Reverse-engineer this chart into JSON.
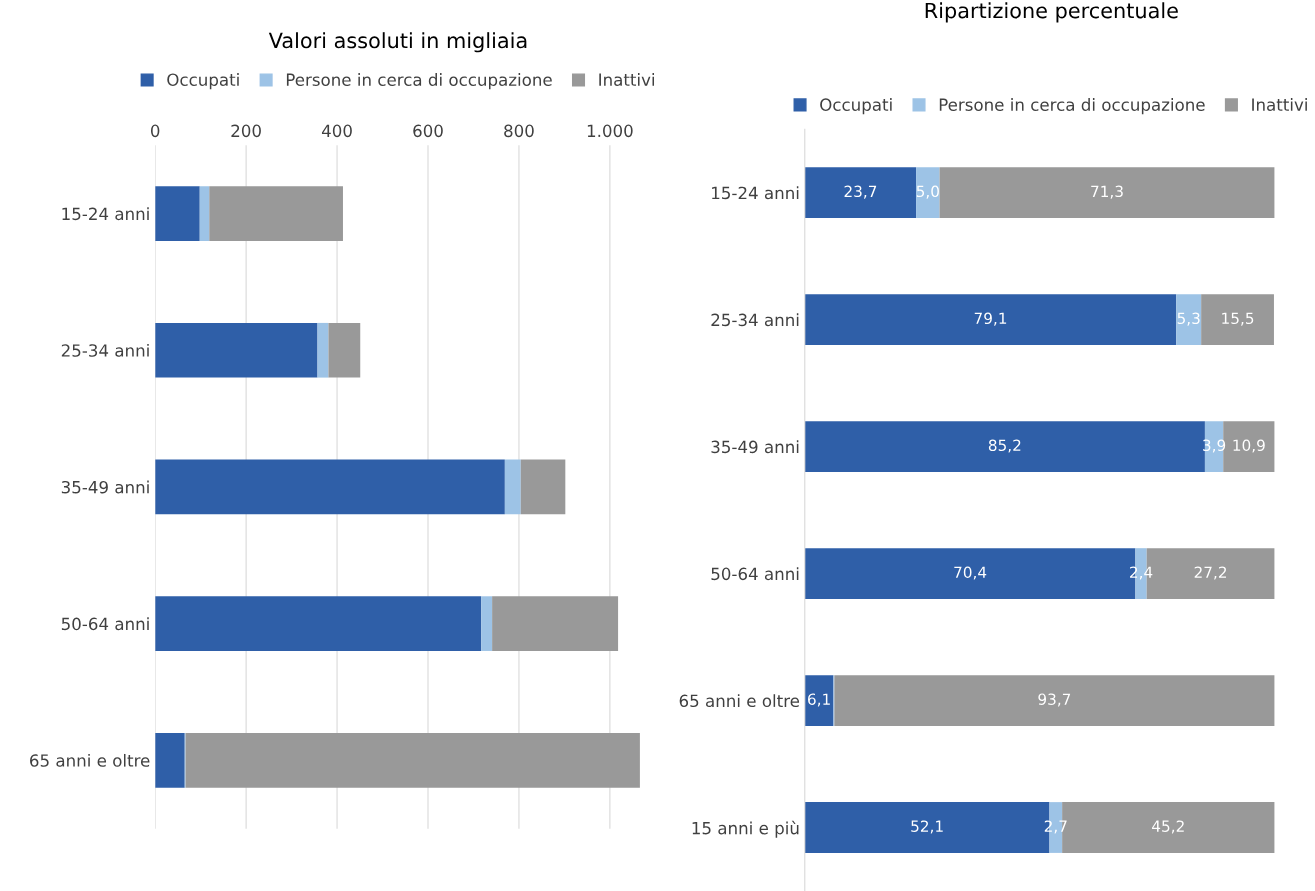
{
  "chart_data": [
    {
      "type": "bar",
      "title": "Valori assoluti in migliaia",
      "orientation": "horizontal",
      "stacked": true,
      "legend": "top",
      "grid": "x",
      "categories": [
        "15-24 anni",
        "25-34 anni",
        "35-49 anni",
        "50-64 anni",
        "65 anni e oltre"
      ],
      "xlim": [
        0,
        1070
      ],
      "xticks": [
        0,
        200,
        400,
        600,
        800,
        {
          "value": 1000,
          "label": "1.000"
        }
      ],
      "series": [
        {
          "name": "Occupati",
          "color": "#2f5fa8",
          "values": [
            98,
            357,
            769,
            717,
            65
          ]
        },
        {
          "name": "Persone in cerca di occupazione",
          "color": "#9dc3e6",
          "values": [
            21,
            24,
            35,
            24,
            2
          ]
        },
        {
          "name": "Inattivi",
          "color": "#999999",
          "values": [
            294,
            70,
            98,
            277,
            999
          ]
        }
      ]
    },
    {
      "type": "bar",
      "title": "Ripartizione percentuale",
      "orientation": "horizontal",
      "stacked": true,
      "legend": "top",
      "tick_labels": "y",
      "categories": [
        "15-24 anni",
        "25-34 anni",
        "35-49 anni",
        "50-64 anni",
        "65 anni e oltre",
        "15 anni e più"
      ],
      "series": [
        {
          "name": "Occupati",
          "color": "#2f5fa8",
          "values": [
            23.7,
            79.1,
            85.2,
            70.4,
            6.1,
            52.1
          ],
          "value_labels": [
            "23,7",
            "79,1",
            "85,2",
            "70,4",
            "6,1",
            "52,1"
          ]
        },
        {
          "name": "Persone in cerca di occupazione",
          "color": "#9dc3e6",
          "values": [
            5.0,
            5.3,
            3.9,
            2.4,
            0.2,
            2.7
          ],
          "value_labels": [
            "5,0",
            "5,3",
            "3,9",
            "2,4",
            null,
            "2,7"
          ]
        },
        {
          "name": "Inattivi",
          "color": "#999999",
          "values": [
            71.3,
            15.5,
            10.9,
            27.2,
            93.7,
            45.2
          ],
          "value_labels": [
            "71,3",
            "15,5",
            "10,9",
            "27,2",
            "93,7",
            "45,2"
          ]
        }
      ]
    }
  ]
}
